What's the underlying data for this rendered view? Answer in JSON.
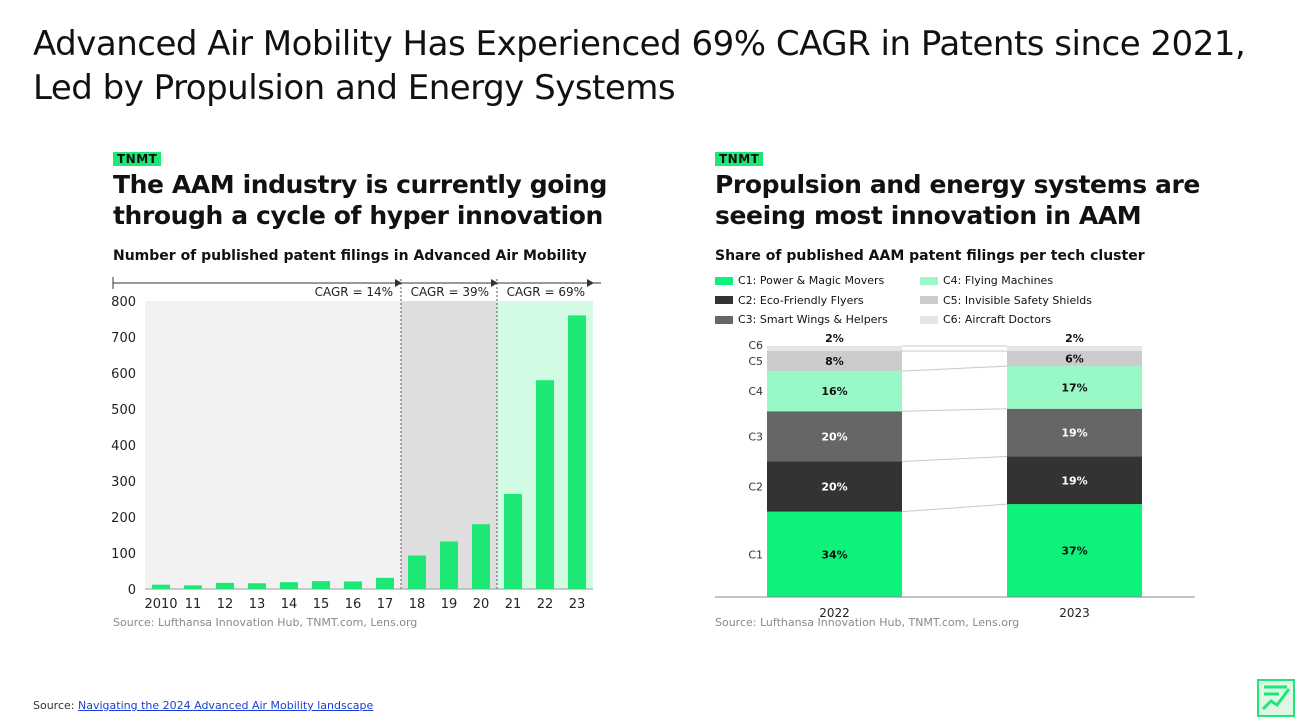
{
  "title": "Advanced Air Mobility Has Experienced 69% CAGR in Patents since 2021, Led by Propulsion and Energy Systems",
  "left": {
    "badge": "TNMT",
    "title_lines": [
      "The AAM industry is currently going",
      "through a cycle of hyper innovation"
    ],
    "subtitle": "Number of published patent filings in Advanced Air Mobility",
    "source": "Source: Lufthansa Innovation Hub, TNMT.com, Lens.org"
  },
  "right": {
    "badge": "TNMT",
    "title_lines": [
      "Propulsion and energy systems are",
      "seeing most innovation in AAM"
    ],
    "subtitle": "Share of published AAM patent filings per tech cluster",
    "source": "Source: Lufthansa Innovation Hub, TNMT.com, Lens.org"
  },
  "footer": {
    "prefix": "Source:",
    "link_text": "Navigating the 2024 Advanced Air Mobility landscape"
  },
  "colors": {
    "brand_green": "#1de876",
    "region1": "#f2f2f2",
    "region2": "#dedede",
    "region3": "#d2fbe4",
    "c1": "#0df27a",
    "c2": "#333333",
    "c3": "#666666",
    "c4": "#99f9c6",
    "c5": "#cccccc",
    "c6": "#e5e5e5"
  },
  "chart_data": [
    {
      "type": "bar",
      "title": "Number of published patent filings in Advanced Air Mobility",
      "categories": [
        "2010",
        "11",
        "12",
        "13",
        "14",
        "15",
        "16",
        "17",
        "18",
        "19",
        "20",
        "21",
        "22",
        "23"
      ],
      "values": [
        12,
        10,
        17,
        16,
        19,
        22,
        21,
        31,
        93,
        132,
        180,
        264,
        580,
        760
      ],
      "ylim": [
        0,
        800
      ],
      "yticks": [
        0,
        100,
        200,
        300,
        400,
        500,
        600,
        700,
        800
      ],
      "xlabel": "",
      "ylabel": "",
      "annotations": [
        {
          "label": "CAGR = 14%",
          "from": "2010",
          "to": "17"
        },
        {
          "label": "CAGR = 39%",
          "from": "18",
          "to": "20"
        },
        {
          "label": "CAGR = 69%",
          "from": "21",
          "to": "23"
        }
      ]
    },
    {
      "type": "bar",
      "stacked": true,
      "percent": true,
      "title": "Share of published AAM patent filings per tech cluster",
      "categories": [
        "2022",
        "2023"
      ],
      "series": [
        {
          "name": "C1: Power & Magic Movers",
          "short": "C1",
          "values": [
            34,
            37
          ]
        },
        {
          "name": "C2: Eco-Friendly Flyers",
          "short": "C2",
          "values": [
            20,
            19
          ]
        },
        {
          "name": "C3: Smart Wings & Helpers",
          "short": "C3",
          "values": [
            20,
            19
          ]
        },
        {
          "name": "C4: Flying Machines",
          "short": "C4",
          "values": [
            16,
            17
          ]
        },
        {
          "name": "C5: Invisible Safety Shields",
          "short": "C5",
          "values": [
            8,
            6
          ]
        },
        {
          "name": "C6: Aircraft Doctors",
          "short": "C6",
          "values": [
            2,
            2
          ]
        }
      ],
      "value_labels": [
        [
          "34%",
          "20%",
          "20%",
          "16%",
          "8%",
          "2%"
        ],
        [
          "37%",
          "19%",
          "19%",
          "17%",
          "6%",
          "2%"
        ]
      ],
      "legend_position": "top"
    }
  ]
}
